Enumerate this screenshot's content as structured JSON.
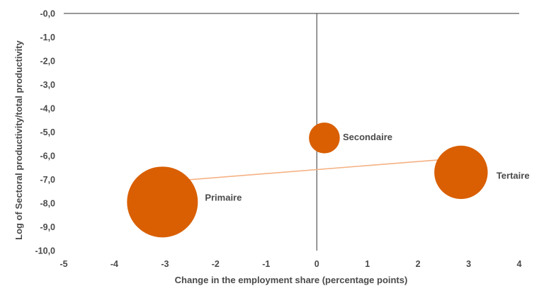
{
  "chart_data": {
    "type": "bubble",
    "title": "",
    "xlabel": "Change in the employment share (percentage points)",
    "ylabel": "Log of Sectoral productivity/total productivity",
    "xlim": [
      -5,
      4
    ],
    "ylim": [
      -10,
      0
    ],
    "x_ticks": [
      {
        "value": -5,
        "label": "-5"
      },
      {
        "value": -4,
        "label": "-4"
      },
      {
        "value": -3,
        "label": "-3"
      },
      {
        "value": -2,
        "label": "-2"
      },
      {
        "value": -1,
        "label": "-1"
      },
      {
        "value": 0,
        "label": "0"
      },
      {
        "value": 1,
        "label": "1"
      },
      {
        "value": 2,
        "label": "2"
      },
      {
        "value": 3,
        "label": "3"
      },
      {
        "value": 4,
        "label": "4"
      }
    ],
    "y_ticks": [
      {
        "value": 0,
        "label": "-0,0"
      },
      {
        "value": -1,
        "label": "-1,0"
      },
      {
        "value": -2,
        "label": "-2,0"
      },
      {
        "value": -3,
        "label": "-3,0"
      },
      {
        "value": -4,
        "label": "-4,0"
      },
      {
        "value": -5,
        "label": "-5,0"
      },
      {
        "value": -6,
        "label": "-6,0"
      },
      {
        "value": -7,
        "label": "-7,0"
      },
      {
        "value": -8,
        "label": "-8,0"
      },
      {
        "value": -9,
        "label": "-9,0"
      },
      {
        "value": -10,
        "label": "-10,0"
      }
    ],
    "points": [
      {
        "label": "Primaire",
        "x": -3.05,
        "y": -7.95,
        "relative_size": 1.0
      },
      {
        "label": "Secondaire",
        "x": 0.15,
        "y": -5.25,
        "relative_size": 0.19
      },
      {
        "label": "Tertaire",
        "x": 2.85,
        "y": -6.7,
        "relative_size": 0.57
      }
    ],
    "trendline": {
      "x": [
        -3.05,
        2.85
      ],
      "y": [
        -7.1,
        -6.1
      ]
    },
    "colors": {
      "bubble": "#d95f02",
      "trendline": "#f4b183",
      "axis": "#333333"
    },
    "grid": false,
    "legend": "none"
  }
}
